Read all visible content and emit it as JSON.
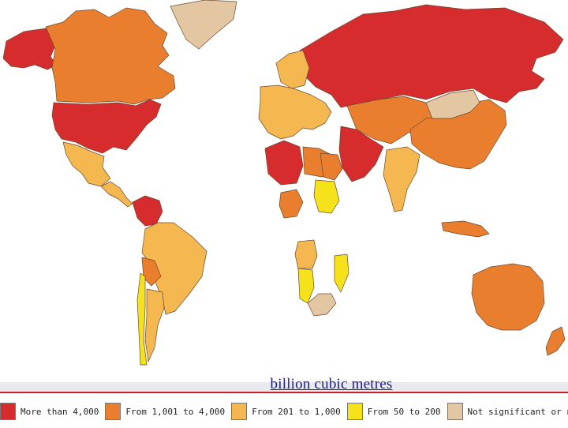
{
  "map": {
    "unit_caption": "billion cubic metres",
    "colors": {
      "ocean": "#ffffff",
      "gt4000": "#d62c2e",
      "1001_4000": "#e97f2e",
      "201_1000": "#f5b851",
      "50_200": "#f6e21b",
      "na": "#e3c6a2"
    },
    "regions": [
      {
        "name": "Alaska",
        "class": "gt4000"
      },
      {
        "name": "Canada",
        "class": "1001_4000"
      },
      {
        "name": "United States",
        "class": "gt4000"
      },
      {
        "name": "Mexico",
        "class": "201_1000"
      },
      {
        "name": "Central America",
        "class": "201_1000"
      },
      {
        "name": "Venezuela",
        "class": "gt4000"
      },
      {
        "name": "Brazil",
        "class": "201_1000"
      },
      {
        "name": "Bolivia",
        "class": "1001_4000"
      },
      {
        "name": "Chile",
        "class": "50_200"
      },
      {
        "name": "Argentina",
        "class": "201_1000"
      },
      {
        "name": "Greenland",
        "class": "na"
      },
      {
        "name": "Russia",
        "class": "gt4000"
      },
      {
        "name": "Western Europe",
        "class": "201_1000"
      },
      {
        "name": "Scandinavia",
        "class": "201_1000"
      },
      {
        "name": "Central Asia",
        "class": "1001_4000"
      },
      {
        "name": "China",
        "class": "1001_4000"
      },
      {
        "name": "Mongolia",
        "class": "na"
      },
      {
        "name": "Middle East",
        "class": "gt4000"
      },
      {
        "name": "Algeria",
        "class": "gt4000"
      },
      {
        "name": "Libya",
        "class": "1001_4000"
      },
      {
        "name": "Egypt",
        "class": "1001_4000"
      },
      {
        "name": "Sudan",
        "class": "50_200"
      },
      {
        "name": "Nigeria",
        "class": "1001_4000"
      },
      {
        "name": "Angola",
        "class": "201_1000"
      },
      {
        "name": "Namibia",
        "class": "50_200"
      },
      {
        "name": "Mozambique",
        "class": "50_200"
      },
      {
        "name": "South Africa",
        "class": "na"
      },
      {
        "name": "India",
        "class": "201_1000"
      },
      {
        "name": "Indonesia",
        "class": "1001_4000"
      },
      {
        "name": "Australia",
        "class": "1001_4000"
      },
      {
        "name": "New Zealand",
        "class": "1001_4000"
      }
    ]
  },
  "legend": [
    {
      "key": "gt4000",
      "label": "More than 4,000",
      "color": "#d62c2e"
    },
    {
      "key": "1001_4000",
      "label": "From 1,001 to 4,000",
      "color": "#e97f2e"
    },
    {
      "key": "201_1000",
      "label": "From 201 to 1,000",
      "color": "#f5b851"
    },
    {
      "key": "50_200",
      "label": "From 50 to 200",
      "color": "#f6e21b"
    },
    {
      "key": "na",
      "label": "Not significant or n.a.",
      "color": "#e3c6a2"
    }
  ]
}
